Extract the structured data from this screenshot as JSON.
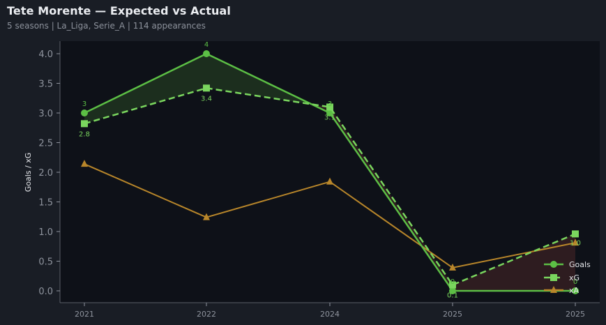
{
  "header": {
    "title": "Tete Morente — Expected vs Actual",
    "subtitle": "5 seasons | La_Liga, Serie_A | 114 appearances"
  },
  "colors": {
    "background": "#191d25",
    "plot_background": "#0e1118",
    "goals": "#5cbf45",
    "xg": "#7ad65e",
    "xa": "#b8862a",
    "overperform_fill": "#1c2e1e",
    "underperform_fill": "#2e1c20"
  },
  "chart_data": {
    "type": "line",
    "title": "Tete Morente — Expected vs Actual",
    "subtitle": "5 seasons | La_Liga, Serie_A | 114 appearances",
    "xlabel": "",
    "ylabel": "Goals / xG",
    "categories": [
      "2021",
      "2022",
      "2024",
      "2025",
      "2025"
    ],
    "ylim": [
      -0.2,
      4.2
    ],
    "yticks": [
      "0.0",
      "0.5",
      "1.0",
      "1.5",
      "2.0",
      "2.5",
      "3.0",
      "3.5",
      "4.0"
    ],
    "grid": false,
    "legend_position": "lower right",
    "series": [
      {
        "name": "Goals",
        "marker": "circle",
        "style": "solid",
        "values": [
          3,
          4,
          3,
          0,
          0
        ],
        "labels": [
          "3",
          "4",
          "3",
          "0",
          "0"
        ]
      },
      {
        "name": "xG",
        "marker": "square",
        "style": "dashed",
        "values": [
          2.82,
          3.42,
          3.1,
          0.1,
          0.96
        ],
        "labels": [
          "2.8",
          "3.4",
          "3.1",
          "0.1",
          "1.0"
        ]
      },
      {
        "name": "xA",
        "marker": "triangle",
        "style": "solid",
        "values": [
          2.14,
          1.24,
          1.84,
          0.39,
          0.81
        ]
      }
    ],
    "annotations": [
      "green fill where Goals > xG",
      "red fill where Goals < xG"
    ]
  },
  "legend": {
    "items": [
      {
        "label": "Goals"
      },
      {
        "label": "xG"
      },
      {
        "label": "xA"
      }
    ]
  }
}
